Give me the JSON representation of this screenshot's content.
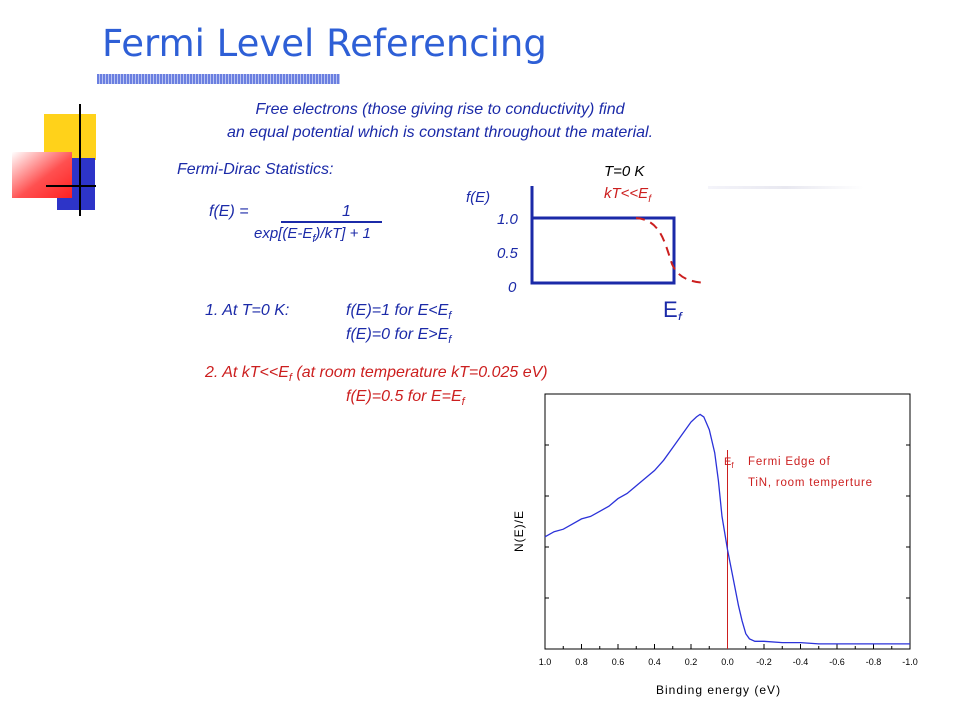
{
  "title": "Fermi Level Referencing",
  "intro": {
    "line1": "Free electrons (those giving rise to conductivity) find",
    "line2": "an equal potential which is constant throughout the material."
  },
  "fermi_dirac": {
    "label": "Fermi-Dirac Statistics:",
    "lhs": "f(E) =",
    "numerator": "1",
    "denominator_a": "exp[(E-E",
    "denominator_sub": "f",
    "denominator_b": ")/kT] + 1"
  },
  "conditions": {
    "item1_label": "1.  At T=0 K:",
    "item1_line1_a": "f(E)=1 for E<E",
    "item1_line2_a": "f(E)=0 for E>E",
    "item2_a": "2.  At kT<<E",
    "item2_b": " (at room temperature kT=0.025 eV)",
    "item2_line2_a": "f(E)=0.5 for E=E",
    "sub_f": "f"
  },
  "step_plot": {
    "ylabel": "f(E)",
    "legend_t0": "T=0 K",
    "legend_kt_a": "kT<<E",
    "legend_kt_sub": "f",
    "yticks": [
      "1.0",
      "0.5",
      "0"
    ],
    "x_marker_a": "E",
    "x_marker_sub": "f",
    "colors": {
      "t0": "#1b2aa8",
      "kt": "#cc1f1f"
    }
  },
  "chart_data": {
    "type": "line",
    "title": "",
    "xlabel": "Binding energy (eV)",
    "ylabel": "N(E)/E",
    "x_reversed": true,
    "xlim": [
      1.0,
      -1.0
    ],
    "xticks": [
      "1.0",
      "0.8",
      "0.6",
      "0.4",
      "0.2",
      "0.0",
      "-0.2",
      "-0.4",
      "-0.6",
      "-0.8",
      "-1.0"
    ],
    "series": [
      {
        "color": "#2b32d9",
        "x": [
          1.0,
          0.95,
          0.9,
          0.85,
          0.8,
          0.75,
          0.7,
          0.65,
          0.6,
          0.55,
          0.5,
          0.45,
          0.4,
          0.35,
          0.3,
          0.25,
          0.2,
          0.17,
          0.15,
          0.13,
          0.1,
          0.07,
          0.05,
          0.03,
          0.0,
          -0.03,
          -0.06,
          -0.08,
          -0.1,
          -0.12,
          -0.15,
          -0.2,
          -0.3,
          -0.4,
          -0.5,
          -0.6,
          -0.7,
          -0.8,
          -0.9,
          -1.0
        ],
        "y": [
          0.44,
          0.46,
          0.47,
          0.49,
          0.51,
          0.52,
          0.54,
          0.56,
          0.59,
          0.61,
          0.64,
          0.67,
          0.7,
          0.74,
          0.79,
          0.84,
          0.89,
          0.91,
          0.92,
          0.91,
          0.86,
          0.77,
          0.66,
          0.52,
          0.39,
          0.28,
          0.17,
          0.11,
          0.06,
          0.04,
          0.03,
          0.03,
          0.025,
          0.025,
          0.02,
          0.02,
          0.02,
          0.02,
          0.02,
          0.02
        ]
      }
    ],
    "fermi_line_x": 0.0,
    "annotation": {
      "marker_a": "E",
      "marker_sub": "f",
      "line1": "Fermi Edge of",
      "line2": "TiN, room temperture",
      "color": "#cc1f1f"
    }
  }
}
